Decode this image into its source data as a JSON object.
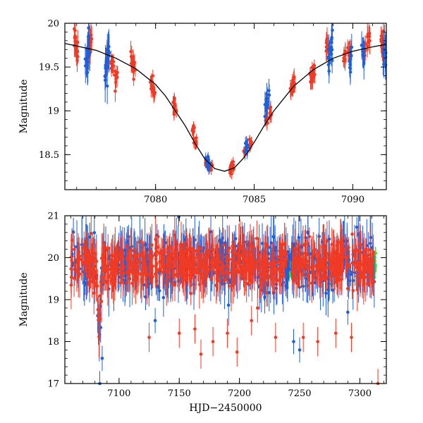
{
  "chart_data": [
    {
      "id": "top",
      "type": "scatter",
      "title": "",
      "xlabel": "",
      "ylabel": "Magnitude",
      "xlim": [
        7075.4,
        7091.7
      ],
      "ylim": [
        20,
        18.1
      ],
      "y_inverted": true,
      "xticks": [
        7080,
        7085,
        7090
      ],
      "xtick_labels": [
        "7080",
        "7085",
        "7090"
      ],
      "yticks": [
        18.5,
        19,
        19.5,
        20
      ],
      "ytick_labels": [
        "18.5",
        "19",
        "19.5",
        "20"
      ],
      "model_curve": {
        "name": "model",
        "color": "#000000",
        "x": [
          7075.4,
          7076,
          7077,
          7078,
          7079,
          7080,
          7080.5,
          7081,
          7081.5,
          7082,
          7082.5,
          7083,
          7083.5,
          7084,
          7084.5,
          7085,
          7085.5,
          7086,
          7087,
          7088,
          7089,
          7090,
          7091,
          7091.7
        ],
        "y": [
          19.77,
          19.74,
          19.69,
          19.6,
          19.48,
          19.3,
          19.17,
          19.0,
          18.83,
          18.63,
          18.45,
          18.34,
          18.31,
          18.35,
          18.47,
          18.64,
          18.83,
          19.0,
          19.28,
          19.47,
          19.6,
          19.68,
          19.73,
          19.76
        ]
      },
      "series": [
        {
          "name": "red",
          "color": "#ef3b26",
          "points": [
            {
              "x": 7075.9,
              "y": 19.85,
              "err": 0.12
            },
            {
              "x": 7076.0,
              "y": 19.72,
              "err": 0.12
            },
            {
              "x": 7076.6,
              "y": 19.75,
              "err": 0.12
            },
            {
              "x": 7076.7,
              "y": 19.8,
              "err": 0.12
            },
            {
              "x": 7077.6,
              "y": 19.65,
              "err": 0.1
            },
            {
              "x": 7077.8,
              "y": 19.55,
              "err": 0.1
            },
            {
              "x": 7078.0,
              "y": 19.4,
              "err": 0.1
            },
            {
              "x": 7078.8,
              "y": 19.55,
              "err": 0.1
            },
            {
              "x": 7078.9,
              "y": 19.48,
              "err": 0.08
            },
            {
              "x": 7079.8,
              "y": 19.32,
              "err": 0.08
            },
            {
              "x": 7079.9,
              "y": 19.22,
              "err": 0.08
            },
            {
              "x": 7080.9,
              "y": 19.08,
              "err": 0.07
            },
            {
              "x": 7081.0,
              "y": 19.0,
              "err": 0.07
            },
            {
              "x": 7081.9,
              "y": 18.78,
              "err": 0.06
            },
            {
              "x": 7082.0,
              "y": 18.65,
              "err": 0.06
            },
            {
              "x": 7082.6,
              "y": 18.42,
              "err": 0.05
            },
            {
              "x": 7082.8,
              "y": 18.36,
              "err": 0.05
            },
            {
              "x": 7083.8,
              "y": 18.32,
              "err": 0.05
            },
            {
              "x": 7083.9,
              "y": 18.38,
              "err": 0.05
            },
            {
              "x": 7084.5,
              "y": 18.55,
              "err": 0.06
            },
            {
              "x": 7084.8,
              "y": 18.62,
              "err": 0.06
            },
            {
              "x": 7085.6,
              "y": 18.9,
              "err": 0.07
            },
            {
              "x": 7085.8,
              "y": 19.0,
              "err": 0.07
            },
            {
              "x": 7086.9,
              "y": 19.25,
              "err": 0.08
            },
            {
              "x": 7087.0,
              "y": 19.32,
              "err": 0.08
            },
            {
              "x": 7087.9,
              "y": 19.38,
              "err": 0.08
            },
            {
              "x": 7088.0,
              "y": 19.45,
              "err": 0.08
            },
            {
              "x": 7088.7,
              "y": 19.75,
              "err": 0.1
            },
            {
              "x": 7089.6,
              "y": 19.6,
              "err": 0.1
            },
            {
              "x": 7089.8,
              "y": 19.7,
              "err": 0.1
            },
            {
              "x": 7090.6,
              "y": 19.72,
              "err": 0.1
            },
            {
              "x": 7090.8,
              "y": 19.82,
              "err": 0.12
            },
            {
              "x": 7091.5,
              "y": 19.8,
              "err": 0.12
            }
          ]
        },
        {
          "name": "blue",
          "color": "#1f5fd8",
          "points": [
            {
              "x": 7076.5,
              "y": 19.55,
              "err": 0.2
            },
            {
              "x": 7076.6,
              "y": 19.7,
              "err": 0.18
            },
            {
              "x": 7077.5,
              "y": 19.45,
              "err": 0.2
            },
            {
              "x": 7077.6,
              "y": 19.7,
              "err": 0.18
            },
            {
              "x": 7082.6,
              "y": 18.45,
              "err": 0.05
            },
            {
              "x": 7082.7,
              "y": 18.38,
              "err": 0.05
            },
            {
              "x": 7084.6,
              "y": 18.6,
              "err": 0.08
            },
            {
              "x": 7085.6,
              "y": 19.05,
              "err": 0.12
            },
            {
              "x": 7085.7,
              "y": 19.15,
              "err": 0.12
            },
            {
              "x": 7088.8,
              "y": 19.6,
              "err": 0.15
            },
            {
              "x": 7088.9,
              "y": 19.75,
              "err": 0.15
            },
            {
              "x": 7089.9,
              "y": 19.55,
              "err": 0.15
            },
            {
              "x": 7090.5,
              "y": 19.65,
              "err": 0.15
            },
            {
              "x": 7091.6,
              "y": 19.65,
              "err": 0.2
            }
          ]
        }
      ]
    },
    {
      "id": "bottom",
      "type": "scatter",
      "title": "",
      "xlabel": "HJD−2450000",
      "ylabel": "Magnitude",
      "xlim": [
        7055,
        7322
      ],
      "ylim": [
        21,
        17
      ],
      "y_inverted": true,
      "xticks": [
        7100,
        7150,
        7200,
        7250,
        7300
      ],
      "xtick_labels": [
        "7100",
        "7150",
        "7200",
        "7250",
        "7300"
      ],
      "yticks": [
        17,
        18,
        19,
        20,
        21
      ],
      "ytick_labels": [
        "17",
        "18",
        "19",
        "20",
        "21"
      ],
      "baseline_magnitude": 19.85,
      "event": {
        "peak_x": 7083.5,
        "peak_y": 18.31
      },
      "season_ranges": [
        [
          7060,
          7128
        ],
        [
          7130,
          7240
        ],
        [
          7243,
          7312
        ]
      ],
      "series": [
        {
          "name": "red",
          "color": "#ef3b26",
          "scatter_sigma": 0.25,
          "outliers": [
            {
              "x": 7125,
              "y": 18.1
            },
            {
              "x": 7150,
              "y": 18.2
            },
            {
              "x": 7163,
              "y": 18.3
            },
            {
              "x": 7168,
              "y": 17.7
            },
            {
              "x": 7178,
              "y": 18.0
            },
            {
              "x": 7190,
              "y": 18.2
            },
            {
              "x": 7198,
              "y": 17.75
            },
            {
              "x": 7210,
              "y": 18.5
            },
            {
              "x": 7215,
              "y": 18.8
            },
            {
              "x": 7230,
              "y": 18.1
            },
            {
              "x": 7253,
              "y": 18.1
            },
            {
              "x": 7265,
              "y": 18.0
            },
            {
              "x": 7280,
              "y": 18.2
            },
            {
              "x": 7293,
              "y": 18.1
            },
            {
              "x": 7315,
              "y": 17.0
            }
          ]
        },
        {
          "name": "blue",
          "color": "#1f5fd8",
          "scatter_sigma": 0.3,
          "outliers": [
            {
              "x": 7084,
              "y": 17.0
            },
            {
              "x": 7086,
              "y": 17.6
            },
            {
              "x": 7130,
              "y": 18.5
            },
            {
              "x": 7245,
              "y": 18.0
            },
            {
              "x": 7250,
              "y": 17.8
            },
            {
              "x": 7290,
              "y": 18.7
            }
          ]
        },
        {
          "name": "green",
          "color": "#3cd33c",
          "scatter_sigma": 0.15,
          "ranges": [
            [
              7183,
              7186
            ],
            [
              7240,
              7246
            ],
            [
              7311,
              7313
            ]
          ],
          "outliers": []
        }
      ]
    }
  ]
}
